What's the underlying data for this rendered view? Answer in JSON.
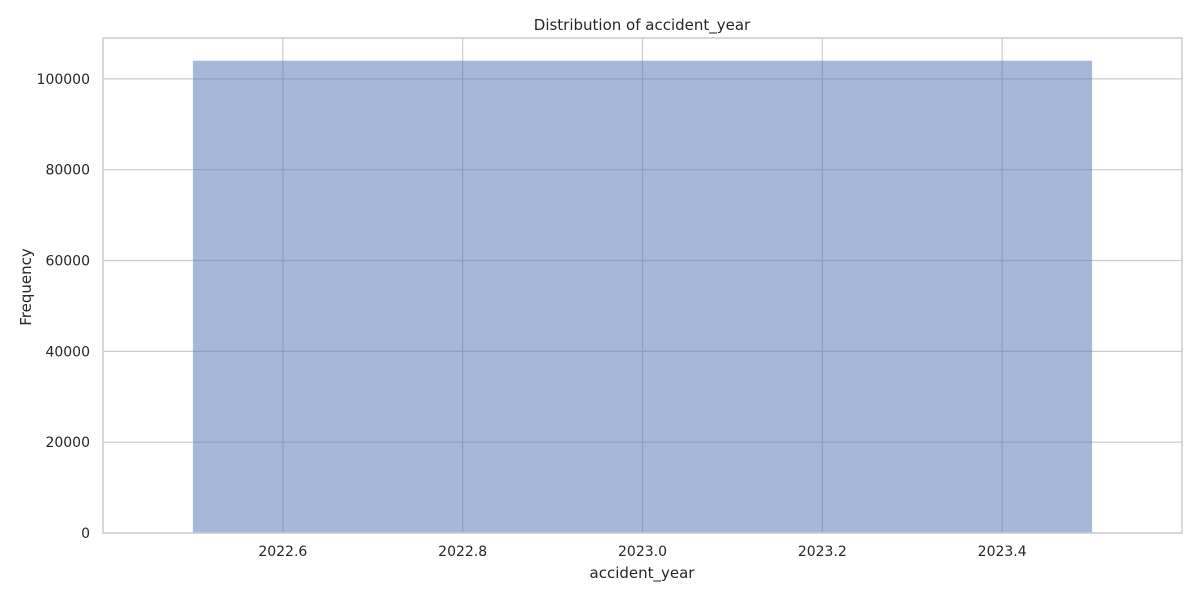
{
  "chart_data": {
    "type": "bar",
    "title": "Distribution of accident_year",
    "xlabel": "accident_year",
    "ylabel": "Frequency",
    "bins": [
      {
        "x_start": 2022.5,
        "x_end": 2023.5,
        "value": 104000
      }
    ],
    "xlim": [
      2022.4,
      2023.6
    ],
    "ylim": [
      0,
      109000
    ],
    "x_ticks": [
      2022.6,
      2022.8,
      2023.0,
      2023.2,
      2023.4
    ],
    "x_tick_labels": [
      "2022.6",
      "2022.8",
      "2023.0",
      "2023.2",
      "2023.4"
    ],
    "y_ticks": [
      0,
      20000,
      40000,
      60000,
      80000,
      100000
    ],
    "y_tick_labels": [
      "0",
      "20000",
      "40000",
      "60000",
      "80000",
      "100000"
    ],
    "grid": true,
    "bar_color": "#4c72b0",
    "bar_opacity": 0.5,
    "style": "seaborn-whitegrid"
  }
}
